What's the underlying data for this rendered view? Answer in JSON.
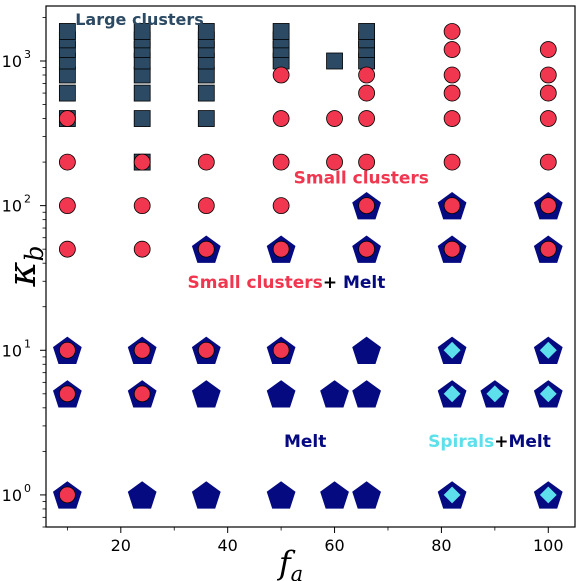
{
  "chart_data": {
    "type": "scatter",
    "xlabel": "f_a",
    "ylabel": "κ_b",
    "xscale": "linear",
    "yscale": "log",
    "xlim": [
      6,
      105
    ],
    "ylim": [
      0.6,
      2400
    ],
    "xticks": [
      20,
      40,
      60,
      80,
      100
    ],
    "xtick_labels": [
      "20",
      "40",
      "60",
      "80",
      "100"
    ],
    "yticks": [
      1,
      10,
      100,
      1000
    ],
    "ytick_labels": [
      "10",
      "10",
      "10",
      "10"
    ],
    "ytick_exponents": [
      "0",
      "1",
      "2",
      "3"
    ],
    "grid": false,
    "legend": "none",
    "colors": {
      "large_clusters": "#2c4a63",
      "small_clusters": "#f0374f",
      "melt": "#050a80",
      "spirals": "#5ee0ec",
      "plus": "#000000"
    },
    "series": [
      {
        "marker": "square",
        "points": [
          [
            10,
            400
          ],
          [
            10,
            600
          ],
          [
            10,
            800
          ],
          [
            10,
            1000
          ],
          [
            10,
            1200
          ],
          [
            10,
            1400
          ],
          [
            10,
            1600
          ],
          [
            24,
            200
          ],
          [
            24,
            400
          ],
          [
            24,
            600
          ],
          [
            24,
            800
          ],
          [
            24,
            1000
          ],
          [
            24,
            1200
          ],
          [
            24,
            1400
          ],
          [
            24,
            1600
          ],
          [
            36,
            400
          ],
          [
            36,
            600
          ],
          [
            36,
            800
          ],
          [
            36,
            1000
          ],
          [
            36,
            1200
          ],
          [
            36,
            1400
          ],
          [
            36,
            1600
          ],
          [
            50,
            1000
          ],
          [
            50,
            1200
          ],
          [
            50,
            1400
          ],
          [
            50,
            1600
          ],
          [
            60,
            1000
          ],
          [
            66,
            1000
          ],
          [
            66,
            1200
          ],
          [
            66,
            1400
          ],
          [
            66,
            1600
          ]
        ]
      },
      {
        "marker": "circle",
        "points": [
          [
            10,
            1
          ],
          [
            10,
            5
          ],
          [
            10,
            10
          ],
          [
            10,
            50
          ],
          [
            10,
            100
          ],
          [
            10,
            200
          ],
          [
            10,
            400
          ],
          [
            24,
            5
          ],
          [
            24,
            10
          ],
          [
            24,
            50
          ],
          [
            24,
            100
          ],
          [
            24,
            200
          ],
          [
            36,
            10
          ],
          [
            36,
            50
          ],
          [
            36,
            100
          ],
          [
            36,
            200
          ],
          [
            50,
            10
          ],
          [
            50,
            50
          ],
          [
            50,
            100
          ],
          [
            50,
            200
          ],
          [
            50,
            400
          ],
          [
            50,
            800
          ],
          [
            60,
            200
          ],
          [
            60,
            400
          ],
          [
            66,
            50
          ],
          [
            66,
            100
          ],
          [
            66,
            200
          ],
          [
            66,
            400
          ],
          [
            66,
            600
          ],
          [
            66,
            800
          ],
          [
            82,
            50
          ],
          [
            82,
            100
          ],
          [
            82,
            200
          ],
          [
            82,
            400
          ],
          [
            82,
            600
          ],
          [
            82,
            800
          ],
          [
            82,
            1200
          ],
          [
            82,
            1600
          ],
          [
            100,
            50
          ],
          [
            100,
            100
          ],
          [
            100,
            200
          ],
          [
            100,
            400
          ],
          [
            100,
            600
          ],
          [
            100,
            800
          ],
          [
            100,
            1200
          ]
        ]
      },
      {
        "marker": "pentagon",
        "points": [
          [
            10,
            1
          ],
          [
            10,
            5
          ],
          [
            10,
            10
          ],
          [
            24,
            1
          ],
          [
            24,
            5
          ],
          [
            24,
            10
          ],
          [
            36,
            1
          ],
          [
            36,
            5
          ],
          [
            36,
            10
          ],
          [
            36,
            50
          ],
          [
            50,
            1
          ],
          [
            50,
            5
          ],
          [
            50,
            10
          ],
          [
            50,
            50
          ],
          [
            60,
            1
          ],
          [
            60,
            5
          ],
          [
            66,
            1
          ],
          [
            66,
            5
          ],
          [
            66,
            10
          ],
          [
            66,
            50
          ],
          [
            66,
            100
          ],
          [
            82,
            1
          ],
          [
            82,
            5
          ],
          [
            82,
            10
          ],
          [
            82,
            50
          ],
          [
            82,
            100
          ],
          [
            90,
            5
          ],
          [
            100,
            1
          ],
          [
            100,
            5
          ],
          [
            100,
            10
          ],
          [
            100,
            50
          ],
          [
            100,
            100
          ]
        ]
      },
      {
        "marker": "diamond",
        "points": [
          [
            82,
            1
          ],
          [
            82,
            5
          ],
          [
            82,
            10
          ],
          [
            90,
            5
          ],
          [
            100,
            1
          ],
          [
            100,
            5
          ],
          [
            100,
            10
          ]
        ]
      }
    ],
    "annotations": [
      {
        "id": "large",
        "parts": [
          {
            "text": "Large clusters",
            "color": "#2c4a63"
          }
        ],
        "x": 23.5,
        "y": 1780
      },
      {
        "id": "small",
        "parts": [
          {
            "text": "Small clusters",
            "color": "#f0374f"
          }
        ],
        "x": 65,
        "y": 142
      },
      {
        "id": "small-melt",
        "parts": [
          {
            "text": "Small clusters",
            "color": "#f0374f"
          },
          {
            "text": "+ ",
            "color": "#000000"
          },
          {
            "text": "Melt",
            "color": "#050a80"
          }
        ],
        "x": 51,
        "y": 27
      },
      {
        "id": "melt",
        "parts": [
          {
            "text": "Melt",
            "color": "#050a80"
          }
        ],
        "x": 54.5,
        "y": 2.15
      },
      {
        "id": "spirals-melt",
        "parts": [
          {
            "text": "Spirals",
            "color": "#5ee0ec"
          },
          {
            "text": "+",
            "color": "#000000"
          },
          {
            "text": "Melt",
            "color": "#050a80"
          }
        ],
        "x": 89,
        "y": 2.15
      }
    ]
  }
}
